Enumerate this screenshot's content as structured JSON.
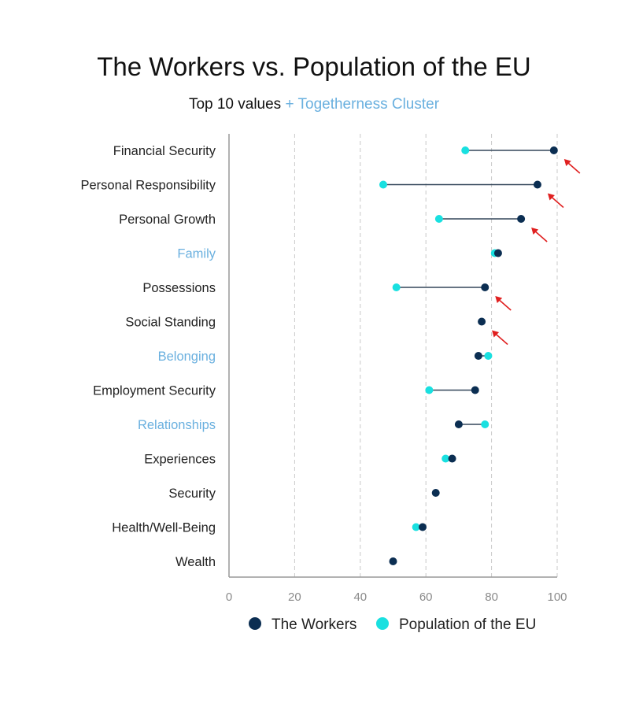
{
  "title": "The Workers vs. Population of the EU",
  "subtitle_main": "Top 10 values",
  "subtitle_highlight": "+ Togetherness Cluster",
  "colors": {
    "workers": "#0b2e52",
    "population": "#19e0e0",
    "highlight_label": "#6ab0df",
    "connector": "#33475a",
    "arrow": "#e02020",
    "grid": "#c8c8c8",
    "axis": "#999999"
  },
  "chart_data": {
    "type": "dumbbell",
    "xlim": [
      0,
      100
    ],
    "x_ticks": [
      0,
      20,
      40,
      60,
      80,
      100
    ],
    "grid": "vertical dashed",
    "legend_position": "bottom",
    "series": [
      {
        "name": "The Workers",
        "color": "#0b2e52"
      },
      {
        "name": "Population of the EU",
        "color": "#19e0e0"
      }
    ],
    "categories": [
      {
        "label": "Financial Security",
        "workers": 99,
        "population": 72,
        "highlight": false,
        "arrow": true
      },
      {
        "label": "Personal Responsibility",
        "workers": 94,
        "population": 47,
        "highlight": false,
        "arrow": true
      },
      {
        "label": "Personal Growth",
        "workers": 89,
        "population": 64,
        "highlight": false,
        "arrow": true
      },
      {
        "label": "Family",
        "workers": 82,
        "population": 81,
        "highlight": true,
        "arrow": false
      },
      {
        "label": "Possessions",
        "workers": 78,
        "population": 51,
        "highlight": false,
        "arrow": true
      },
      {
        "label": "Social Standing",
        "workers": 77,
        "population": null,
        "highlight": false,
        "arrow": true
      },
      {
        "label": "Belonging",
        "workers": 76,
        "population": 79,
        "highlight": true,
        "arrow": false
      },
      {
        "label": "Employment Security",
        "workers": 75,
        "population": 61,
        "highlight": false,
        "arrow": false
      },
      {
        "label": "Relationships",
        "workers": 70,
        "population": 78,
        "highlight": true,
        "arrow": false
      },
      {
        "label": "Experiences",
        "workers": 68,
        "population": 66,
        "highlight": false,
        "arrow": false
      },
      {
        "label": "Security",
        "workers": 63,
        "population": null,
        "highlight": false,
        "arrow": false
      },
      {
        "label": "Health/Well-Being",
        "workers": 59,
        "population": 57,
        "highlight": false,
        "arrow": false
      },
      {
        "label": "Wealth",
        "workers": 50,
        "population": null,
        "highlight": false,
        "arrow": false
      }
    ]
  }
}
